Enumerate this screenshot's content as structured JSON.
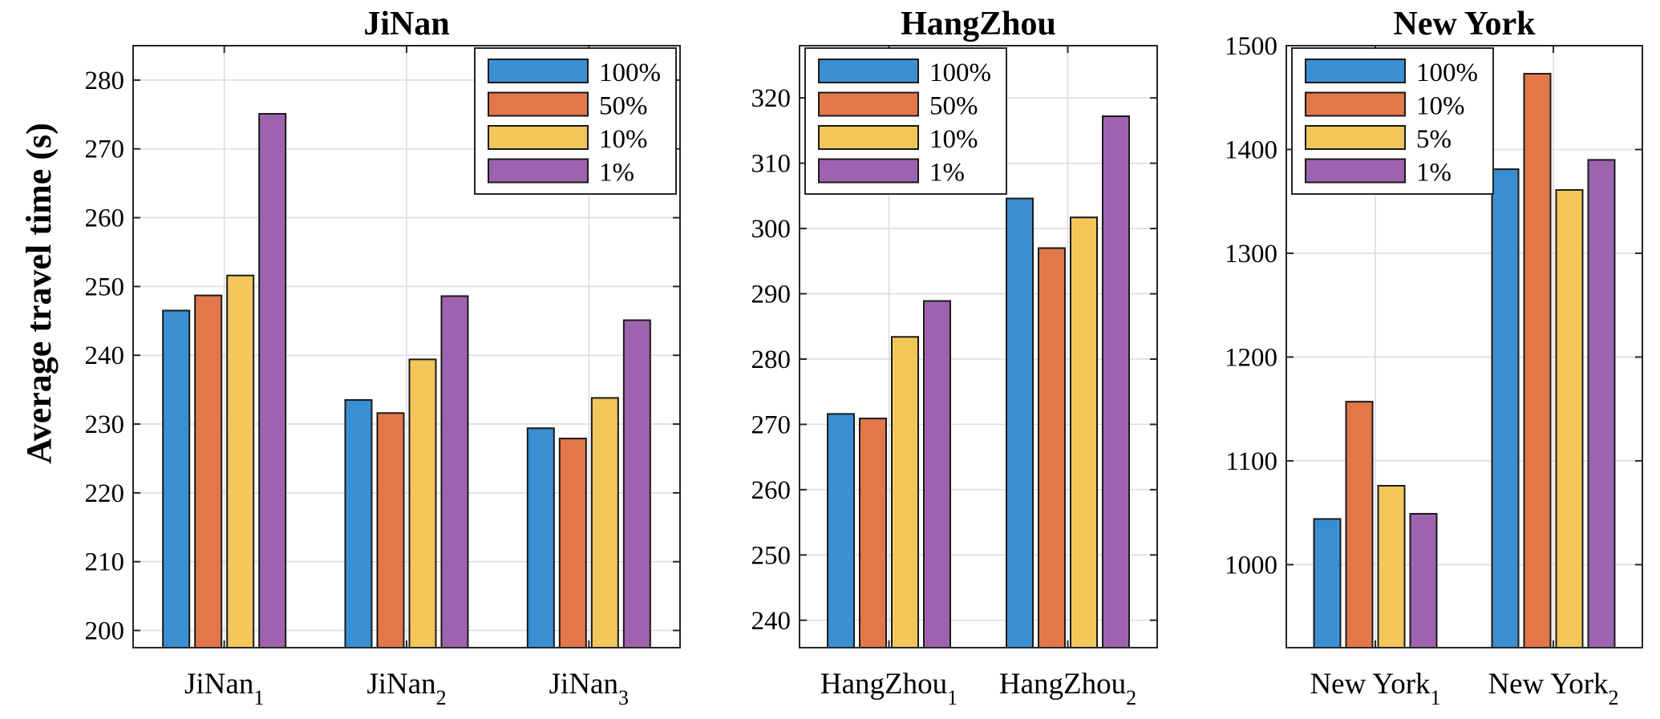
{
  "figure": {
    "ylabel": "Average travel time (s)"
  },
  "colors": {
    "blue": "#3a8fd3",
    "orange": "#e2774a",
    "yellow": "#f2c658",
    "purple": "#9e63ae"
  },
  "chart_data": [
    {
      "type": "bar",
      "title": "JiNan",
      "ylim": [
        197.5,
        285
      ],
      "yticks": [
        200,
        210,
        220,
        230,
        240,
        250,
        260,
        270,
        280
      ],
      "grid": true,
      "legend_position": "top-right",
      "categories": [
        {
          "base": "JiNan",
          "sub": "1"
        },
        {
          "base": "JiNan",
          "sub": "2"
        },
        {
          "base": "JiNan",
          "sub": "3"
        }
      ],
      "series": [
        {
          "name": "100%",
          "color": "#3a8fd3",
          "values": [
            246.5,
            233.5,
            229.4
          ]
        },
        {
          "name": "50%",
          "color": "#e2774a",
          "values": [
            248.7,
            231.6,
            227.9
          ]
        },
        {
          "name": "10%",
          "color": "#f2c658",
          "values": [
            251.6,
            239.4,
            233.8
          ]
        },
        {
          "name": "1%",
          "color": "#9e63ae",
          "values": [
            275.1,
            248.6,
            245.1
          ]
        }
      ]
    },
    {
      "type": "bar",
      "title": "HangZhou",
      "ylim": [
        235.8,
        328
      ],
      "yticks": [
        240,
        250,
        260,
        270,
        280,
        290,
        300,
        310,
        320
      ],
      "grid": true,
      "legend_position": "top-left",
      "categories": [
        {
          "base": "HangZhou",
          "sub": "1"
        },
        {
          "base": "HangZhou",
          "sub": "2"
        }
      ],
      "series": [
        {
          "name": "100%",
          "color": "#3a8fd3",
          "values": [
            271.6,
            304.6
          ]
        },
        {
          "name": "50%",
          "color": "#e2774a",
          "values": [
            270.9,
            297.0
          ]
        },
        {
          "name": "10%",
          "color": "#f2c658",
          "values": [
            283.4,
            301.7
          ]
        },
        {
          "name": "1%",
          "color": "#9e63ae",
          "values": [
            288.9,
            317.2
          ]
        }
      ]
    },
    {
      "type": "bar",
      "title": "New York",
      "ylim": [
        920,
        1500
      ],
      "yticks": [
        1000,
        1100,
        1200,
        1300,
        1400,
        1500
      ],
      "grid": true,
      "legend_position": "top-left",
      "categories": [
        {
          "base": "New York",
          "sub": "1"
        },
        {
          "base": "New York",
          "sub": "2"
        }
      ],
      "series": [
        {
          "name": "100%",
          "color": "#3a8fd3",
          "values": [
            1044,
            1381
          ]
        },
        {
          "name": "10%",
          "color": "#e2774a",
          "values": [
            1157,
            1473
          ]
        },
        {
          "name": "5%",
          "color": "#f2c658",
          "values": [
            1076,
            1361
          ]
        },
        {
          "name": "1%",
          "color": "#9e63ae",
          "values": [
            1049,
            1390
          ]
        }
      ]
    }
  ]
}
